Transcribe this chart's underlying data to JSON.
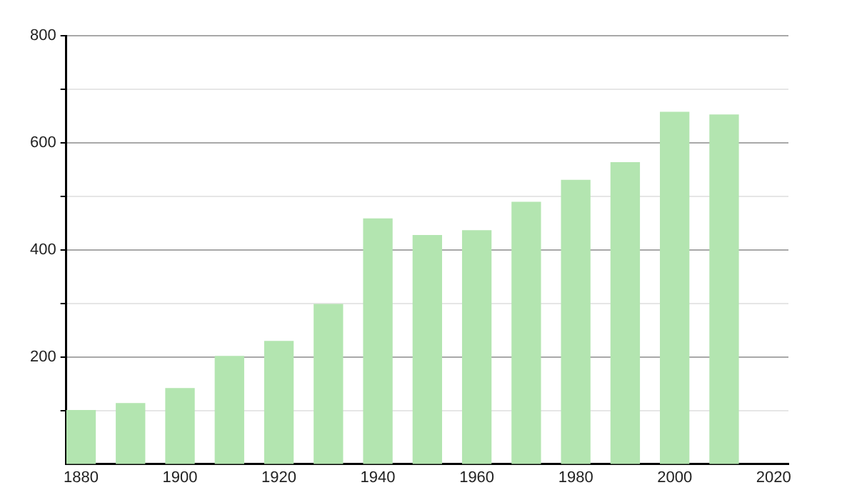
{
  "chart_data": {
    "type": "bar",
    "x": [
      1880,
      1890,
      1900,
      1910,
      1920,
      1930,
      1940,
      1950,
      1960,
      1970,
      1980,
      1990,
      2000,
      2010
    ],
    "values": [
      100,
      113,
      141,
      201,
      229,
      298,
      458,
      427,
      436,
      489,
      530,
      563,
      657,
      652
    ],
    "color": "#b3e5b0",
    "xlim": [
      1877,
      2023
    ],
    "xticks": [
      1880,
      1900,
      1920,
      1940,
      1960,
      1980,
      2000,
      2020
    ],
    "ylim": [
      0,
      800
    ],
    "yticks": [
      {
        "value": 100,
        "label": null
      },
      200,
      {
        "value": 300,
        "label": null
      },
      400,
      {
        "value": 500,
        "label": null
      },
      600,
      {
        "value": 700,
        "label": null
      },
      800
    ],
    "grid": "y"
  }
}
